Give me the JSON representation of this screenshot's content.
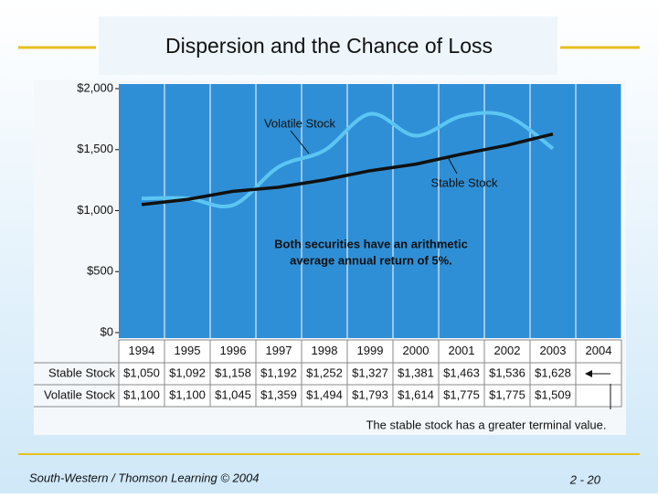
{
  "title": "Dispersion and the Chance of Loss",
  "footer": {
    "left": "South-Western / Thomson Learning © 2004",
    "right": "2 - 20"
  },
  "chart_data": {
    "type": "line",
    "categories": [
      "1994",
      "1995",
      "1996",
      "1997",
      "1998",
      "1999",
      "2000",
      "2001",
      "2002",
      "2003",
      "2004"
    ],
    "series": [
      {
        "name": "Stable Stock",
        "color": "#111111",
        "values": [
          1050,
          1092,
          1158,
          1192,
          1252,
          1327,
          1381,
          1463,
          1536,
          1628,
          null
        ],
        "value_labels": [
          "$1,050",
          "$1,092",
          "$1,158",
          "$1,192",
          "$1,252",
          "$1,327",
          "$1,381",
          "$1,463",
          "$1,536",
          "$1,628",
          null
        ]
      },
      {
        "name": "Volatile Stock",
        "color": "#5cc6f2",
        "values": [
          1100,
          1100,
          1045,
          1359,
          1494,
          1793,
          1614,
          1775,
          1775,
          1509,
          null
        ],
        "value_labels": [
          "$1,100",
          "$1,100",
          "$1,045",
          "$1,359",
          "$1,494",
          "$1,793",
          "$1,614",
          "$1,775",
          "$1,775",
          "$1,509",
          null
        ]
      }
    ],
    "ylim": [
      0,
      2000
    ],
    "yticks": [
      {
        "value": 0,
        "label": "$0"
      },
      {
        "value": 500,
        "label": "$500"
      },
      {
        "value": 1000,
        "label": "$1,000"
      },
      {
        "value": 1500,
        "label": "$1,500"
      },
      {
        "value": 2000,
        "label": "$2,000"
      }
    ],
    "grid": true,
    "annotations": [
      "Volatile Stock",
      "Stable Stock",
      "Both securities have an arithmetic",
      "average annual return of 5%.",
      "The stable stock has a greater terminal value."
    ]
  }
}
